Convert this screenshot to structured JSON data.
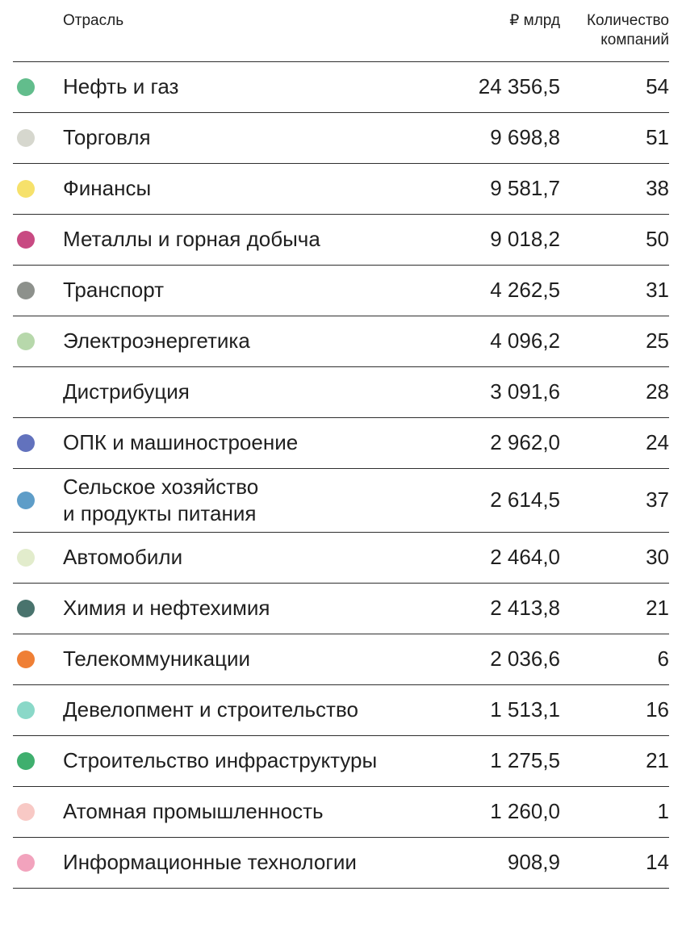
{
  "table": {
    "headers": {
      "sector": "Отрасль",
      "value": "₽ млрд",
      "count": "Количество компаний"
    },
    "rows": [
      {
        "label": "Нефть и газ",
        "value": "24 356,5",
        "count": "54",
        "color": "#62bd8c"
      },
      {
        "label": "Торговля",
        "value": "9 698,8",
        "count": "51",
        "color": "#d6d7ce"
      },
      {
        "label": "Финансы",
        "value": "9 581,7",
        "count": "38",
        "color": "#f6e16b"
      },
      {
        "label": "Металлы и горная добыча",
        "value": "9 018,2",
        "count": "50",
        "color": "#c84a82"
      },
      {
        "label": "Транспорт",
        "value": "4 262,5",
        "count": "31",
        "color": "#8d918c"
      },
      {
        "label": "Электроэнергетика",
        "value": "4 096,2",
        "count": "25",
        "color": "#b7d8ab"
      },
      {
        "label": "Дистрибуция",
        "value": "3 091,6",
        "count": "28",
        "color": null
      },
      {
        "label": "ОПК и машиностроение",
        "value": "2 962,0",
        "count": "24",
        "color": "#6272bd"
      },
      {
        "label": "Сельское хозяйство\nи продукты питания",
        "value": "2 614,5",
        "count": "37",
        "color": "#5e9dc8"
      },
      {
        "label": "Автомобили",
        "value": "2 464,0",
        "count": "30",
        "color": "#e2eccc"
      },
      {
        "label": "Химия и нефтехимия",
        "value": "2 413,8",
        "count": "21",
        "color": "#49736d"
      },
      {
        "label": "Телекоммуникации",
        "value": "2 036,6",
        "count": "6",
        "color": "#ef7f35"
      },
      {
        "label": "Девелопмент и строительство",
        "value": "1 513,1",
        "count": "16",
        "color": "#8ad8c8"
      },
      {
        "label": "Строительство инфраструктуры",
        "value": "1 275,5",
        "count": "21",
        "color": "#3faf6e"
      },
      {
        "label": "Атомная промышленность",
        "value": "1 260,0",
        "count": "1",
        "color": "#f8c9c5"
      },
      {
        "label": "Информационные технологии",
        "value": "908,9",
        "count": "14",
        "color": "#f2a3bd"
      }
    ]
  },
  "chart_data": {
    "type": "table",
    "title": "",
    "columns": [
      "Отрасль",
      "₽ млрд",
      "Количество компаний"
    ],
    "rows": [
      {
        "sector": "Нефть и газ",
        "revenue_bln_rub": 24356.5,
        "companies": 54
      },
      {
        "sector": "Торговля",
        "revenue_bln_rub": 9698.8,
        "companies": 51
      },
      {
        "sector": "Финансы",
        "revenue_bln_rub": 9581.7,
        "companies": 38
      },
      {
        "sector": "Металлы и горная добыча",
        "revenue_bln_rub": 9018.2,
        "companies": 50
      },
      {
        "sector": "Транспорт",
        "revenue_bln_rub": 4262.5,
        "companies": 31
      },
      {
        "sector": "Электроэнергетика",
        "revenue_bln_rub": 4096.2,
        "companies": 25
      },
      {
        "sector": "Дистрибуция",
        "revenue_bln_rub": 3091.6,
        "companies": 28
      },
      {
        "sector": "ОПК и машиностроение",
        "revenue_bln_rub": 2962.0,
        "companies": 24
      },
      {
        "sector": "Сельское хозяйство и продукты питания",
        "revenue_bln_rub": 2614.5,
        "companies": 37
      },
      {
        "sector": "Автомобили",
        "revenue_bln_rub": 2464.0,
        "companies": 30
      },
      {
        "sector": "Химия и нефтехимия",
        "revenue_bln_rub": 2413.8,
        "companies": 21
      },
      {
        "sector": "Телекоммуникации",
        "revenue_bln_rub": 2036.6,
        "companies": 6
      },
      {
        "sector": "Девелопмент и строительство",
        "revenue_bln_rub": 1513.1,
        "companies": 16
      },
      {
        "sector": "Строительство инфраструктуры",
        "revenue_bln_rub": 1275.5,
        "companies": 21
      },
      {
        "sector": "Атомная промышленность",
        "revenue_bln_rub": 1260.0,
        "companies": 1
      },
      {
        "sector": "Информационные технологии",
        "revenue_bln_rub": 908.9,
        "companies": 14
      }
    ]
  }
}
